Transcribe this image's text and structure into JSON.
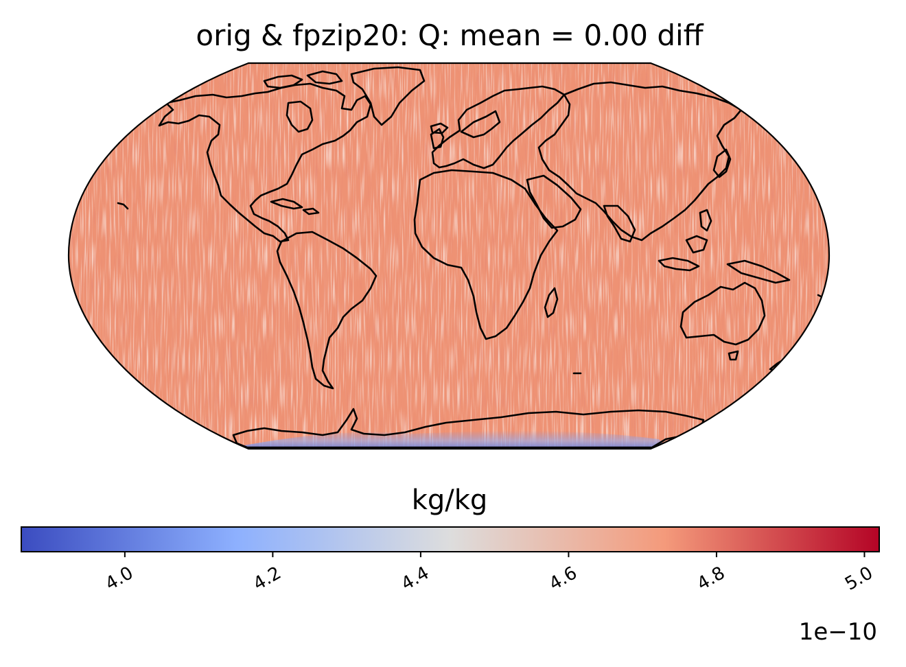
{
  "title": "orig & fpzip20: Q: mean = 0.00 diff",
  "map": {
    "projection": "Robinson",
    "field": "Q",
    "background_color": "#ee9274",
    "coastlines": true
  },
  "colorbar": {
    "label": "kg/kg",
    "colormap": "coolwarm",
    "orientation": "horizontal",
    "vmin": 3.86,
    "vmax": 5.02,
    "ticks": [
      {
        "value": 4.0,
        "label": "4.0"
      },
      {
        "value": 4.2,
        "label": "4.2"
      },
      {
        "value": 4.4,
        "label": "4.4"
      },
      {
        "value": 4.6,
        "label": "4.6"
      },
      {
        "value": 4.8,
        "label": "4.8"
      },
      {
        "value": 5.0,
        "label": "5.0"
      }
    ],
    "exponent_label": "1e−10",
    "stops": [
      "#3b4cc0",
      "#8db0fe",
      "#dddddd",
      "#f49a7b",
      "#b40426"
    ]
  }
}
